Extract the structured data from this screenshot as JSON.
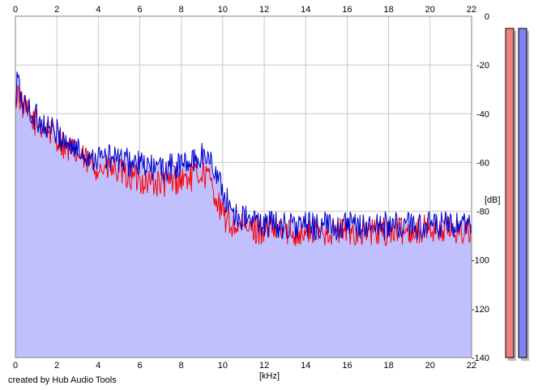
{
  "chart_data": {
    "type": "area",
    "xlabel": "[kHz]",
    "ylabel": "[dB]",
    "xlim": [
      0,
      22
    ],
    "ylim": [
      -140,
      0
    ],
    "x_ticks": [
      0,
      2,
      4,
      6,
      8,
      10,
      12,
      14,
      16,
      18,
      20,
      22
    ],
    "y_ticks": [
      0,
      -20,
      -40,
      -60,
      -80,
      -100,
      -120,
      -140
    ],
    "grid": true,
    "fill_color": "#c0c0ff",
    "series": [
      {
        "color": "#ff0000",
        "x": [
          0,
          0.1,
          0.2,
          0.4,
          0.6,
          0.9,
          1.2,
          1.6,
          2.0,
          2.5,
          3.0,
          3.5,
          4.0,
          4.5,
          5.0,
          5.5,
          6.0,
          6.5,
          7.0,
          7.5,
          8.0,
          8.5,
          9.0,
          9.3,
          9.6,
          9.9,
          10.2,
          10.5,
          11.0,
          12.0,
          13.0,
          14.0,
          15.0,
          16.0,
          17.0,
          18.0,
          19.0,
          20.0,
          21.0,
          22.0
        ],
        "y": [
          -36,
          -30,
          -33,
          -38,
          -40,
          -43,
          -45,
          -47,
          -50,
          -54,
          -57,
          -60,
          -62,
          -63,
          -64,
          -66,
          -67,
          -68,
          -69,
          -68,
          -67,
          -66,
          -64,
          -66,
          -72,
          -80,
          -84,
          -86,
          -87,
          -88,
          -88,
          -89,
          -88,
          -88,
          -89,
          -88,
          -88,
          -87,
          -88,
          -88
        ]
      },
      {
        "color": "#0000cc",
        "x": [
          0,
          0.1,
          0.2,
          0.4,
          0.6,
          0.9,
          1.2,
          1.6,
          2.0,
          2.5,
          3.0,
          3.5,
          4.0,
          4.5,
          5.0,
          5.5,
          6.0,
          6.5,
          7.0,
          7.5,
          8.0,
          8.5,
          9.0,
          9.3,
          9.6,
          9.9,
          10.2,
          10.5,
          11.0,
          12.0,
          13.0,
          14.0,
          15.0,
          16.0,
          17.0,
          18.0,
          19.0,
          20.0,
          21.0,
          22.0
        ],
        "y": [
          -40,
          -23,
          -31,
          -36,
          -38,
          -41,
          -43,
          -46,
          -48,
          -52,
          -55,
          -57,
          -58,
          -58,
          -59,
          -60,
          -61,
          -62,
          -63,
          -62,
          -61,
          -60,
          -57,
          -58,
          -62,
          -70,
          -76,
          -80,
          -83,
          -85,
          -86,
          -86,
          -86,
          -86,
          -86,
          -86,
          -86,
          -86,
          -86,
          -87
        ]
      }
    ],
    "level_meters": [
      {
        "color": "#f08080",
        "top_db": -5
      },
      {
        "color": "#8080f0",
        "top_db": -5
      }
    ]
  },
  "footer": {
    "credit": "created by Hub Audio Tools"
  }
}
